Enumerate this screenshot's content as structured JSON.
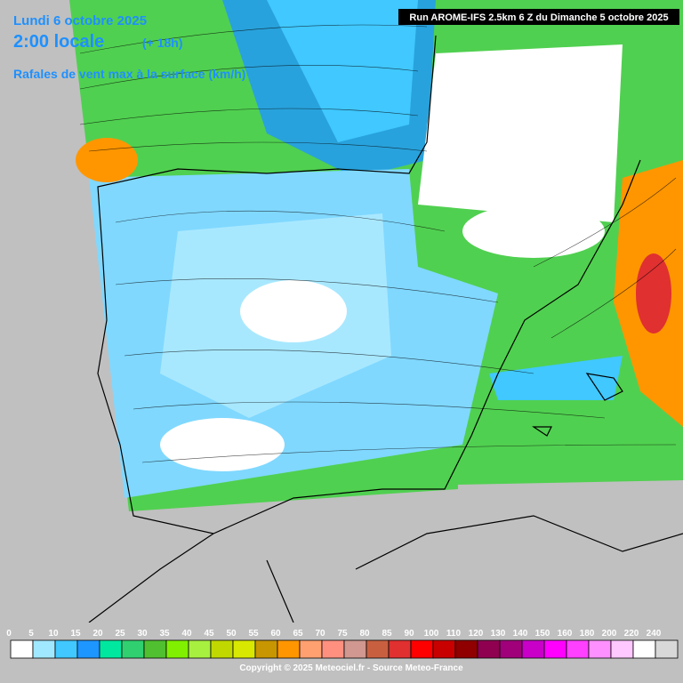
{
  "header": {
    "date": "Lundi 6 octobre 2025",
    "time": "2:00 locale",
    "lead": "(+ 18h)",
    "parameter": "Rafales de vent max à la surface (km/h)",
    "run": "Run AROME-IFS 2.5km 6 Z du Dimanche 5 octobre 2025"
  },
  "legend": {
    "values": [
      0,
      5,
      10,
      15,
      20,
      25,
      30,
      35,
      40,
      45,
      50,
      55,
      60,
      65,
      70,
      75,
      80,
      85,
      90,
      100,
      110,
      120,
      130,
      140,
      150,
      160,
      180,
      200,
      220,
      240
    ],
    "colors": [
      "#ffffff",
      "#a0e8ff",
      "#40c8ff",
      "#1e96ff",
      "#00e8a0",
      "#30d070",
      "#50c030",
      "#80f000",
      "#a8f040",
      "#c0d800",
      "#d8e800",
      "#c89600",
      "#ff9600",
      "#ffa070",
      "#ff9080",
      "#d09890",
      "#c86040",
      "#e03030",
      "#ff0000",
      "#c80000",
      "#900000",
      "#900050",
      "#a0007a",
      "#c800c8",
      "#ff00ff",
      "#ff40ff",
      "#ff90ff",
      "#ffc8ff",
      "#ffffff",
      "#d8d8d8"
    ]
  },
  "footer": {
    "copyright": "Copyright © 2025 Meteociel.fr - Source Meteo-France"
  }
}
